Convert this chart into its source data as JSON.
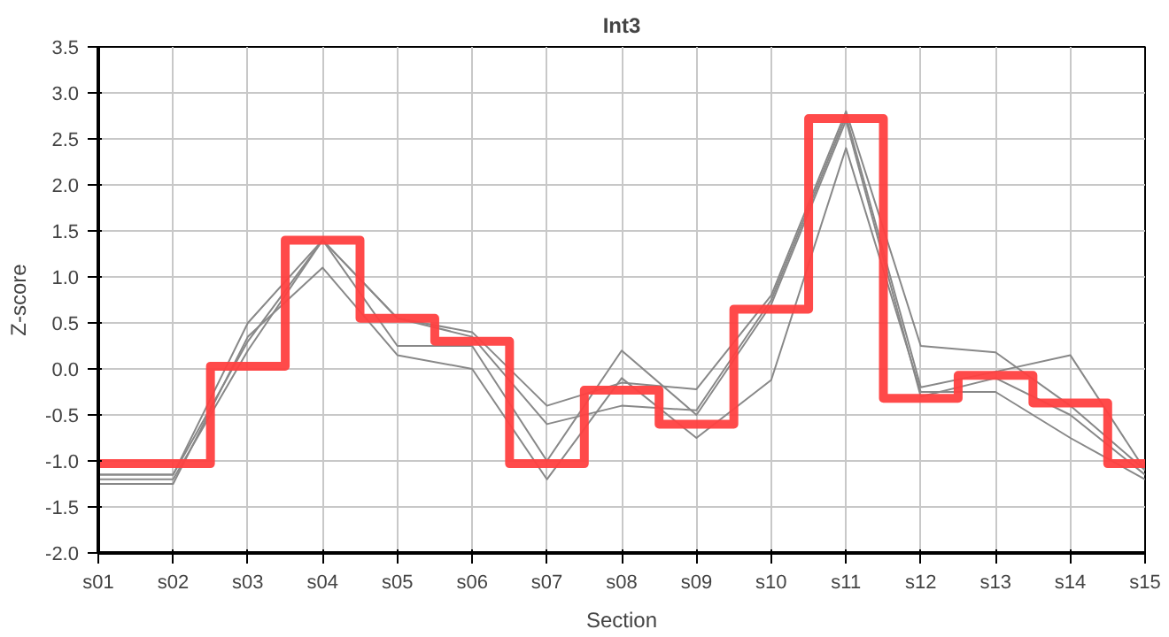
{
  "chart_data": {
    "type": "line",
    "title": "Int3",
    "xlabel": "Section",
    "ylabel": "Z-score",
    "categories": [
      "s01",
      "s02",
      "s03",
      "s04",
      "s05",
      "s06",
      "s07",
      "s08",
      "s09",
      "s10",
      "s11",
      "s12",
      "s13",
      "s14",
      "s15"
    ],
    "ylim": [
      -2.0,
      3.5
    ],
    "yticks": [
      {
        "value": -2,
        "label": "-2.0"
      },
      {
        "value": -1.5,
        "label": "-1.5"
      },
      {
        "value": -1,
        "label": "-1.0"
      },
      {
        "value": -0.5,
        "label": "-0.5"
      },
      {
        "value": 0,
        "label": "0.0"
      },
      {
        "value": 0.5,
        "label": "0.5"
      },
      {
        "value": 1,
        "label": "1.0"
      },
      {
        "value": 1.5,
        "label": "1.5"
      },
      {
        "value": 2,
        "label": "2.0"
      },
      {
        "value": 2.5,
        "label": "2.5"
      },
      {
        "value": 3,
        "label": "3.0"
      },
      {
        "value": 3.5,
        "label": "3.5"
      }
    ],
    "grid": true,
    "marker": "none",
    "series": [
      {
        "color": "#888888",
        "values": [
          -1.15,
          -1.15,
          0.5,
          1.4,
          0.55,
          0.4,
          -0.4,
          -0.15,
          -0.22,
          0.8,
          2.8,
          0.25,
          0.18,
          -0.4,
          -1.1
        ]
      },
      {
        "color": "#888888",
        "values": [
          -1.15,
          -1.15,
          0.3,
          1.4,
          0.55,
          0.35,
          -0.6,
          -0.4,
          -0.45,
          0.75,
          2.75,
          -0.2,
          -0.03,
          0.15,
          -1.1
        ]
      },
      {
        "color": "#888888",
        "values": [
          -1.2,
          -1.2,
          0.2,
          1.4,
          0.25,
          0.25,
          -1.0,
          0.2,
          -0.5,
          0.7,
          2.7,
          -0.3,
          -0.1,
          -0.5,
          -1.15
        ]
      },
      {
        "color": "#888888",
        "values": [
          -1.25,
          -1.25,
          0.35,
          1.1,
          0.15,
          0.0,
          -1.2,
          -0.1,
          -0.75,
          -0.12,
          2.4,
          -0.25,
          -0.25,
          -0.75,
          -1.2
        ]
      },
      {
        "type": "step",
        "color": "#ff4040",
        "values": [
          -1.03,
          -1.03,
          0.03,
          1.4,
          0.55,
          0.3,
          -1.03,
          -0.23,
          -0.6,
          0.65,
          2.72,
          -0.32,
          -0.07,
          -0.37,
          -1.03
        ]
      }
    ]
  }
}
